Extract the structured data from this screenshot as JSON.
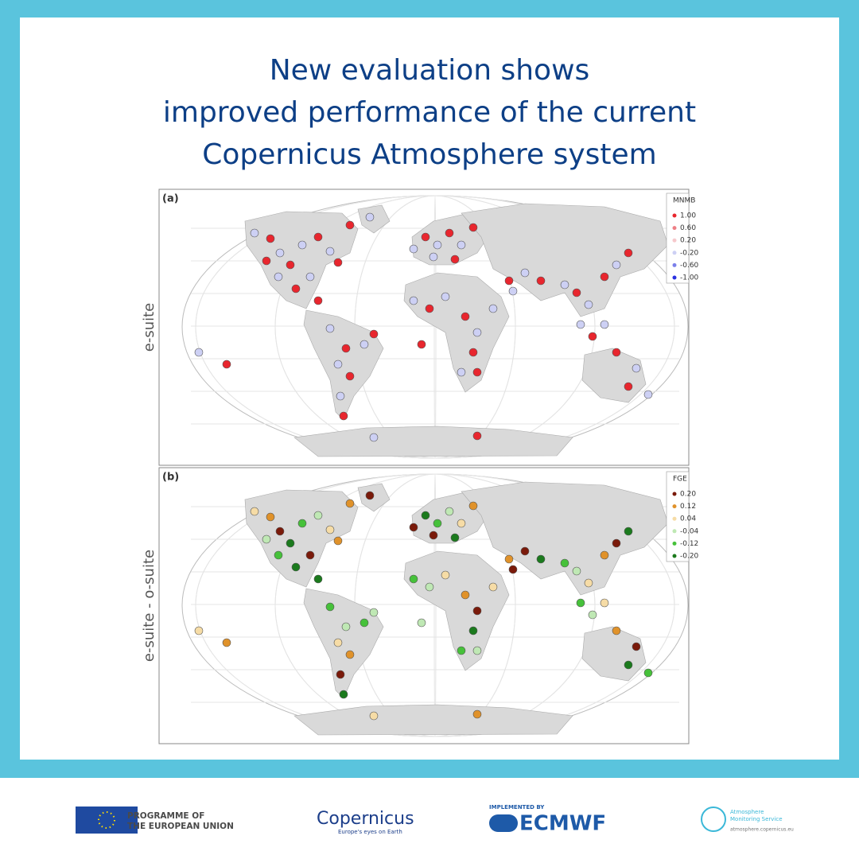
{
  "header": {
    "title_lines": [
      "New evaluation shows",
      "improved performance of the current",
      "Copernicus Atmosphere system"
    ]
  },
  "panels": [
    {
      "label": "(a)",
      "side_label": "e-suite",
      "legend": {
        "title": "MNMB",
        "entries": [
          {
            "label": "1.00",
            "color": "#e8262e"
          },
          {
            "label": "0.60",
            "color": "#ee7f86"
          },
          {
            "label": "0.20",
            "color": "#f6c9cc"
          },
          {
            "label": "-0.20",
            "color": "#cdd0f4"
          },
          {
            "label": "-0.60",
            "color": "#7b80ea"
          },
          {
            "label": "-1.00",
            "color": "#2a31e0"
          }
        ]
      }
    },
    {
      "label": "(b)",
      "side_label": "e-suite - o-suite",
      "legend": {
        "title": "FGE",
        "entries": [
          {
            "label": "0.20",
            "color": "#7a1a0a"
          },
          {
            "label": "0.12",
            "color": "#e0922a"
          },
          {
            "label": "0.04",
            "color": "#f6dca6"
          },
          {
            "label": "-0.04",
            "color": "#bfe8b4"
          },
          {
            "label": "-0.12",
            "color": "#46c13a"
          },
          {
            "label": "-0.20",
            "color": "#1b7a1d"
          }
        ]
      }
    }
  ],
  "footer": {
    "eu": {
      "lines": [
        "PROGRAMME OF",
        "THE EUROPEAN UNION"
      ]
    },
    "copernicus": {
      "name": "Copernicus",
      "tagline": "Europe's eyes on Earth"
    },
    "ecmwf": {
      "caption": "IMPLEMENTED BY",
      "name": "ECMWF"
    },
    "cams": {
      "lines": [
        "Atmosphere",
        "Monitoring Service"
      ],
      "url": "atmosphere.copernicus.eu"
    }
  }
}
